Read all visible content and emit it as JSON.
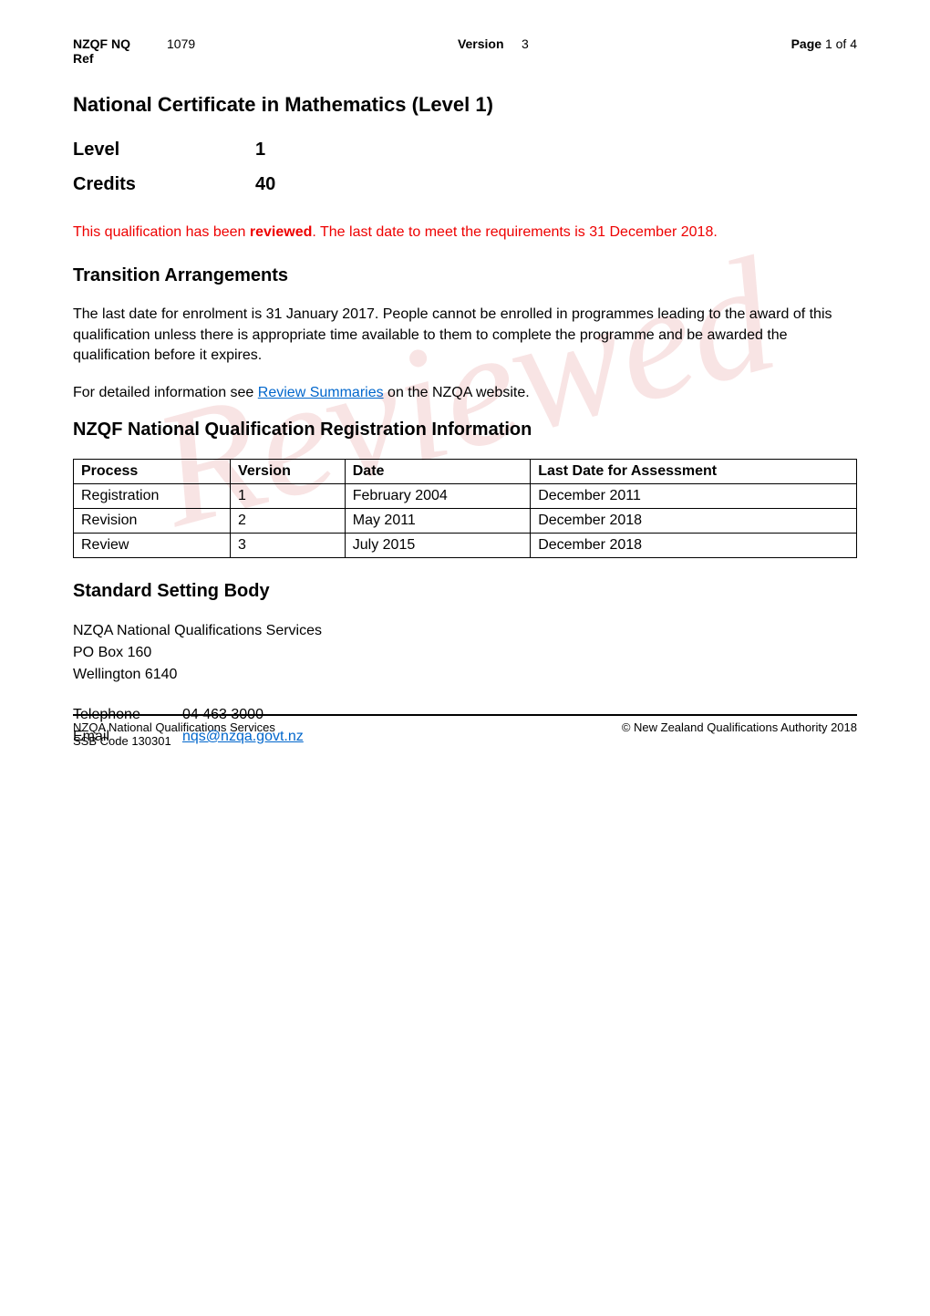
{
  "header": {
    "nq_label": "NZQF NQ",
    "ref_label": "Ref",
    "nq_value": "1079",
    "version_label": "Version",
    "version_value": "3",
    "page_label": "Page",
    "page_value": "1 of 4"
  },
  "title": "National Certificate in Mathematics (Level 1)",
  "level": {
    "label": "Level",
    "value": "1"
  },
  "credits": {
    "label": "Credits",
    "value": "40"
  },
  "reviewed_notice": {
    "prefix": "This qualification has been ",
    "bold": "reviewed",
    "suffix": ".  The last date to meet the requirements is 31 December 2018."
  },
  "transition": {
    "heading": "Transition Arrangements",
    "para1": "The last date for enrolment is 31 January 2017.  People cannot be enrolled in programmes leading to the award of this qualification unless there is appropriate time available to them to complete the programme and be awarded the qualification before it expires.",
    "para2_prefix": "For detailed information see ",
    "para2_link": "Review Summaries",
    "para2_suffix": " on the NZQA website."
  },
  "registration": {
    "heading": "NZQF National Qualification Registration Information",
    "columns": [
      "Process",
      "Version",
      "Date",
      "Last Date for Assessment"
    ],
    "rows": [
      [
        "Registration",
        "1",
        "February 2004",
        "December 2011"
      ],
      [
        "Revision",
        "2",
        "May 2011",
        "December 2018"
      ],
      [
        "Review",
        "3",
        "July 2015",
        "December 2018"
      ]
    ]
  },
  "ssb": {
    "heading": "Standard Setting Body",
    "line1": "NZQA National Qualifications Services",
    "line2": "PO Box 160",
    "line3": "Wellington 6140",
    "telephone_label": "Telephone",
    "telephone_value": "04 463 3000",
    "email_label": "Email",
    "email_value": "nqs@nzqa.govt.nz"
  },
  "footer": {
    "left_line1": "NZQA National Qualifications Services",
    "left_line2": "SSB Code 130301",
    "right": "© New Zealand Qualifications Authority 2018"
  },
  "watermark": "Reviewed"
}
